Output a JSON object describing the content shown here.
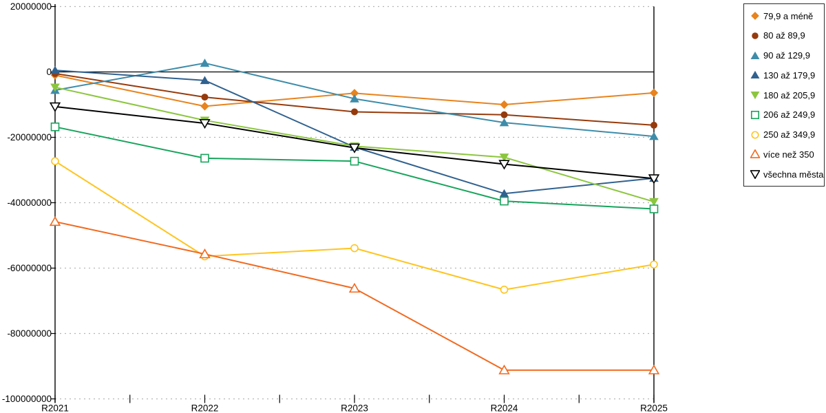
{
  "page": {
    "background": "#ffffff",
    "text_color": "#000000",
    "gridline_color": "#b4b4b4"
  },
  "chart_data": {
    "type": "line",
    "title": "",
    "xlabel": "",
    "ylabel": "",
    "x_categories": [
      "R2021",
      "R2022",
      "R2023",
      "R2024",
      "R2025"
    ],
    "ylim": [
      -100000000,
      20000000
    ],
    "y_tick_values": [
      20000000,
      0,
      -20000000,
      -40000000,
      -60000000,
      -80000000,
      -100000000
    ],
    "y_tick_labels": [
      "20000000",
      "0",
      "-20000000",
      "-40000000",
      "-60000000",
      "-80000000",
      "-100000000"
    ],
    "grid": "horizontal dashed, solid line at 0",
    "legend_position": "top-right, boxed",
    "series": [
      {
        "name": "79,9 a méně",
        "marker": "diamond",
        "fill": "filled",
        "color": "#E8831D",
        "values": [
          -1000000,
          -10500000,
          -6500000,
          -10000000,
          -6400000
        ]
      },
      {
        "name": "80 až 89,9",
        "marker": "circle",
        "fill": "filled",
        "color": "#963A0C",
        "values": [
          -500000,
          -7700000,
          -12200000,
          -13100000,
          -16300000
        ]
      },
      {
        "name": "90 až 129,9",
        "marker": "triangle-up",
        "fill": "filled",
        "color": "#3E8CA9",
        "values": [
          -5600000,
          2700000,
          -8200000,
          -15500000,
          -19700000
        ]
      },
      {
        "name": "130 až 179,9",
        "marker": "triangle-up",
        "fill": "filled",
        "color": "#30618F",
        "values": [
          500000,
          -2600000,
          -23000000,
          -37200000,
          -32500000
        ]
      },
      {
        "name": "180 až 205,9",
        "marker": "triangle-down",
        "fill": "filled",
        "color": "#8CC63E",
        "values": [
          -4700000,
          -14800000,
          -22700000,
          -26100000,
          -39700000
        ]
      },
      {
        "name": "206 až 249,9",
        "marker": "square",
        "fill": "hollow",
        "color": "#17A45C",
        "values": [
          -16800000,
          -26400000,
          -27300000,
          -39500000,
          -41900000
        ]
      },
      {
        "name": "250 až 349,9",
        "marker": "circle",
        "fill": "hollow",
        "color": "#FFC41E",
        "values": [
          -27300000,
          -56400000,
          -53900000,
          -66600000,
          -58900000
        ]
      },
      {
        "name": "více než 350",
        "marker": "triangle-up",
        "fill": "hollow",
        "color": "#F2691E",
        "values": [
          -45800000,
          -55700000,
          -66200000,
          -91200000,
          -91200000
        ]
      },
      {
        "name": "všechna města",
        "marker": "triangle-down",
        "fill": "hollow",
        "color": "#000000",
        "values": [
          -10600000,
          -15700000,
          -23200000,
          -28200000,
          -32600000
        ]
      }
    ]
  }
}
